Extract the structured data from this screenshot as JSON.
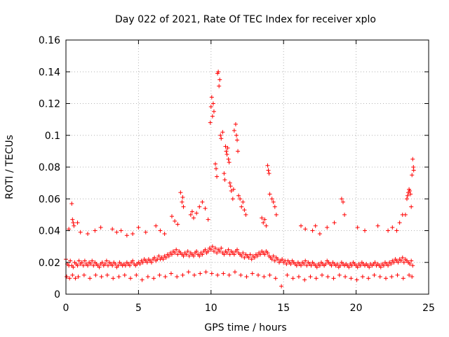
{
  "chart_data": {
    "type": "scatter",
    "title": "Day 022 of 2021, Rate Of TEC Index for receiver xplo",
    "xlabel": "GPS time / hours",
    "ylabel": "ROTI / TECUs",
    "xlim": [
      0,
      25
    ],
    "ylim": [
      0,
      0.16
    ],
    "xticks": [
      0,
      5,
      10,
      15,
      20,
      25
    ],
    "xtick_labels": [
      "0",
      "5",
      "10",
      "15",
      "20",
      "25"
    ],
    "yticks": [
      0,
      0.02,
      0.04,
      0.06,
      0.08,
      0.1,
      0.12,
      0.14,
      0.16
    ],
    "ytick_labels": [
      "0",
      "0.02",
      "0.04",
      "0.06",
      "0.08",
      "0.1",
      "0.12",
      "0.14",
      "0.16"
    ],
    "grid": true,
    "marker": "plus",
    "color": "#ff0000",
    "x": [
      0.0,
      0.1,
      0.2,
      0.3,
      0.4,
      0.5,
      0.6,
      0.7,
      0.8,
      0.9,
      1.0,
      1.1,
      1.2,
      1.3,
      1.4,
      1.5,
      1.6,
      1.7,
      1.8,
      1.9,
      2.0,
      2.1,
      2.2,
      2.3,
      2.4,
      2.5,
      2.6,
      2.7,
      2.8,
      2.9,
      3.0,
      3.1,
      3.2,
      3.3,
      3.4,
      3.5,
      3.6,
      3.7,
      3.8,
      3.9,
      4.0,
      4.1,
      4.2,
      4.3,
      4.4,
      4.5,
      4.6,
      4.7,
      4.8,
      4.9,
      5.0,
      5.1,
      5.2,
      5.3,
      5.4,
      5.5,
      5.6,
      5.7,
      5.8,
      5.9,
      6.0,
      6.1,
      6.2,
      6.3,
      6.4,
      6.5,
      6.6,
      6.7,
      6.8,
      6.9,
      7.0,
      7.1,
      7.2,
      7.3,
      7.4,
      7.5,
      7.6,
      7.7,
      7.8,
      7.9,
      8.0,
      8.1,
      8.2,
      8.3,
      8.4,
      8.5,
      8.6,
      8.7,
      8.8,
      8.9,
      9.0,
      9.1,
      9.2,
      9.3,
      9.4,
      9.5,
      9.6,
      9.7,
      9.8,
      9.9,
      10.0,
      10.1,
      10.2,
      10.3,
      10.4,
      10.5,
      10.6,
      10.7,
      10.8,
      10.9,
      11.0,
      11.1,
      11.2,
      11.3,
      11.4,
      11.5,
      11.6,
      11.7,
      11.8,
      11.9,
      12.0,
      12.1,
      12.2,
      12.3,
      12.4,
      12.5,
      12.6,
      12.7,
      12.8,
      12.9,
      13.0,
      13.1,
      13.2,
      13.3,
      13.4,
      13.5,
      13.6,
      13.7,
      13.8,
      13.9,
      14.0,
      14.1,
      14.2,
      14.3,
      14.4,
      14.5,
      14.6,
      14.7,
      14.8,
      14.9,
      15.0,
      15.1,
      15.2,
      15.3,
      15.4,
      15.5,
      15.6,
      15.7,
      15.8,
      15.9,
      16.0,
      16.1,
      16.2,
      16.3,
      16.4,
      16.5,
      16.6,
      16.7,
      16.8,
      16.9,
      17.0,
      17.1,
      17.2,
      17.3,
      17.4,
      17.5,
      17.6,
      17.7,
      17.8,
      17.9,
      18.0,
      18.1,
      18.2,
      18.3,
      18.4,
      18.5,
      18.6,
      18.7,
      18.8,
      18.9,
      19.0,
      19.1,
      19.2,
      19.3,
      19.4,
      19.5,
      19.6,
      19.7,
      19.8,
      19.9,
      20.0,
      20.1,
      20.2,
      20.3,
      20.4,
      20.5,
      20.6,
      20.7,
      20.8,
      20.9,
      21.0,
      21.1,
      21.2,
      21.3,
      21.4,
      21.5,
      21.6,
      21.7,
      21.8,
      21.9,
      22.0,
      22.1,
      22.2,
      22.3,
      22.4,
      22.5,
      22.6,
      22.7,
      22.8,
      22.9,
      23.0,
      23.1,
      23.2,
      23.3,
      23.4,
      23.5,
      23.6,
      23.7,
      23.8,
      23.9,
      0.05,
      0.25,
      0.45,
      0.65,
      0.85,
      1.25,
      1.65,
      2.05,
      2.45,
      2.85,
      3.25,
      3.65,
      4.05,
      4.45,
      4.85,
      5.25,
      5.65,
      6.05,
      6.45,
      6.85,
      7.25,
      7.65,
      8.05,
      8.45,
      8.85,
      9.25,
      9.65,
      10.05,
      10.45,
      10.85,
      11.25,
      11.65,
      12.05,
      12.45,
      12.85,
      13.25,
      13.65,
      14.05,
      14.45,
      14.85,
      15.25,
      15.65,
      16.05,
      16.45,
      16.85,
      17.25,
      17.65,
      18.05,
      18.45,
      18.85,
      19.25,
      19.65,
      20.05,
      20.45,
      20.85,
      21.25,
      21.65,
      22.05,
      22.45,
      22.85,
      23.25,
      23.65,
      23.85,
      0.4,
      0.45,
      0.5,
      0.55,
      9.95,
      10.0,
      10.05,
      10.1,
      10.15,
      10.2,
      10.45,
      10.5,
      11.0,
      11.05,
      11.1,
      11.15,
      11.2,
      11.25,
      11.3,
      11.35,
      11.6,
      11.7,
      11.75,
      11.8,
      11.85,
      10.3,
      10.35,
      10.4,
      10.55,
      10.6,
      10.65,
      10.7,
      10.8,
      10.9,
      10.95,
      11.4,
      11.5,
      11.55,
      11.9,
      12.0,
      12.1,
      12.2,
      12.3,
      12.4,
      13.9,
      13.95,
      14.0,
      14.05,
      14.2,
      14.3,
      14.4,
      14.5,
      13.5,
      13.6,
      13.7,
      13.8,
      7.9,
      8.0,
      8.05,
      8.1,
      8.6,
      8.7,
      8.8,
      9.0,
      9.2,
      9.4,
      9.6,
      9.8,
      7.3,
      7.5,
      7.7,
      6.2,
      6.5,
      6.8,
      3.2,
      3.5,
      3.8,
      4.6,
      5.0,
      5.5,
      16.2,
      16.5,
      17.0,
      17.2,
      17.5,
      18.0,
      18.5,
      19.0,
      19.1,
      19.2,
      20.1,
      20.6,
      21.5,
      22.2,
      22.5,
      22.8,
      23.0,
      23.2,
      23.4,
      23.5,
      23.55,
      23.6,
      23.65,
      23.7,
      23.75,
      23.8,
      23.85,
      23.9,
      23.95,
      23.97,
      2.0,
      2.4,
      1.5,
      1.0,
      4.2,
      0.2,
      0.8
    ],
    "y": [
      0.022,
      0.019,
      0.018,
      0.021,
      0.018,
      0.017,
      0.02,
      0.019,
      0.018,
      0.021,
      0.019,
      0.02,
      0.018,
      0.021,
      0.019,
      0.018,
      0.02,
      0.019,
      0.021,
      0.018,
      0.02,
      0.019,
      0.018,
      0.017,
      0.019,
      0.02,
      0.018,
      0.019,
      0.021,
      0.018,
      0.02,
      0.019,
      0.018,
      0.02,
      0.019,
      0.017,
      0.018,
      0.02,
      0.019,
      0.018,
      0.019,
      0.018,
      0.02,
      0.019,
      0.018,
      0.02,
      0.021,
      0.019,
      0.018,
      0.019,
      0.02,
      0.019,
      0.021,
      0.02,
      0.022,
      0.021,
      0.02,
      0.022,
      0.021,
      0.02,
      0.022,
      0.023,
      0.021,
      0.022,
      0.024,
      0.022,
      0.023,
      0.022,
      0.024,
      0.023,
      0.025,
      0.024,
      0.026,
      0.025,
      0.027,
      0.026,
      0.028,
      0.025,
      0.027,
      0.026,
      0.025,
      0.024,
      0.026,
      0.025,
      0.027,
      0.024,
      0.026,
      0.025,
      0.024,
      0.026,
      0.027,
      0.025,
      0.024,
      0.026,
      0.025,
      0.027,
      0.028,
      0.026,
      0.027,
      0.029,
      0.028,
      0.03,
      0.027,
      0.029,
      0.026,
      0.028,
      0.027,
      0.029,
      0.026,
      0.025,
      0.027,
      0.026,
      0.028,
      0.025,
      0.027,
      0.026,
      0.025,
      0.027,
      0.028,
      0.026,
      0.025,
      0.024,
      0.026,
      0.023,
      0.025,
      0.024,
      0.023,
      0.025,
      0.022,
      0.024,
      0.023,
      0.025,
      0.024,
      0.026,
      0.025,
      0.027,
      0.026,
      0.025,
      0.027,
      0.026,
      0.024,
      0.023,
      0.022,
      0.024,
      0.021,
      0.023,
      0.022,
      0.02,
      0.021,
      0.022,
      0.02,
      0.021,
      0.019,
      0.021,
      0.02,
      0.019,
      0.021,
      0.02,
      0.019,
      0.018,
      0.02,
      0.019,
      0.018,
      0.02,
      0.019,
      0.021,
      0.018,
      0.02,
      0.019,
      0.018,
      0.02,
      0.019,
      0.018,
      0.017,
      0.019,
      0.018,
      0.02,
      0.019,
      0.018,
      0.019,
      0.021,
      0.02,
      0.019,
      0.018,
      0.02,
      0.019,
      0.018,
      0.019,
      0.017,
      0.018,
      0.02,
      0.019,
      0.018,
      0.019,
      0.018,
      0.017,
      0.019,
      0.018,
      0.02,
      0.019,
      0.018,
      0.017,
      0.019,
      0.018,
      0.02,
      0.019,
      0.018,
      0.019,
      0.018,
      0.017,
      0.019,
      0.018,
      0.019,
      0.02,
      0.018,
      0.019,
      0.018,
      0.017,
      0.019,
      0.018,
      0.02,
      0.019,
      0.018,
      0.02,
      0.019,
      0.021,
      0.02,
      0.022,
      0.021,
      0.02,
      0.022,
      0.021,
      0.023,
      0.02,
      0.022,
      0.021,
      0.02,
      0.019,
      0.021,
      0.018,
      0.011,
      0.01,
      0.012,
      0.01,
      0.011,
      0.012,
      0.01,
      0.012,
      0.011,
      0.012,
      0.01,
      0.011,
      0.012,
      0.01,
      0.012,
      0.009,
      0.011,
      0.01,
      0.012,
      0.011,
      0.013,
      0.011,
      0.012,
      0.014,
      0.012,
      0.013,
      0.014,
      0.013,
      0.012,
      0.013,
      0.012,
      0.014,
      0.012,
      0.011,
      0.013,
      0.012,
      0.011,
      0.012,
      0.01,
      0.005,
      0.012,
      0.01,
      0.011,
      0.009,
      0.011,
      0.01,
      0.012,
      0.011,
      0.01,
      0.012,
      0.011,
      0.01,
      0.009,
      0.011,
      0.01,
      0.012,
      0.011,
      0.01,
      0.011,
      0.012,
      0.01,
      0.012,
      0.011,
      0.057,
      0.047,
      0.045,
      0.043,
      0.108,
      0.118,
      0.124,
      0.112,
      0.12,
      0.115,
      0.139,
      0.14,
      0.093,
      0.09,
      0.088,
      0.092,
      0.085,
      0.083,
      0.07,
      0.068,
      0.103,
      0.107,
      0.1,
      0.097,
      0.09,
      0.082,
      0.079,
      0.074,
      0.131,
      0.135,
      0.1,
      0.098,
      0.102,
      0.076,
      0.072,
      0.065,
      0.06,
      0.066,
      0.062,
      0.06,
      0.055,
      0.058,
      0.053,
      0.05,
      0.081,
      0.078,
      0.076,
      0.063,
      0.06,
      0.058,
      0.055,
      0.05,
      0.048,
      0.045,
      0.047,
      0.043,
      0.064,
      0.058,
      0.061,
      0.055,
      0.05,
      0.052,
      0.048,
      0.051,
      0.055,
      0.058,
      0.054,
      0.047,
      0.049,
      0.046,
      0.044,
      0.043,
      0.04,
      0.038,
      0.041,
      0.039,
      0.04,
      0.038,
      0.042,
      0.039,
      0.043,
      0.041,
      0.04,
      0.043,
      0.038,
      0.042,
      0.045,
      0.06,
      0.058,
      0.05,
      0.042,
      0.04,
      0.043,
      0.04,
      0.042,
      0.04,
      0.045,
      0.05,
      0.05,
      0.06,
      0.062,
      0.064,
      0.066,
      0.065,
      0.063,
      0.055,
      0.075,
      0.085,
      0.08,
      0.078,
      0.04,
      0.042,
      0.038,
      0.039,
      0.037,
      0.041,
      0.045
    ]
  }
}
